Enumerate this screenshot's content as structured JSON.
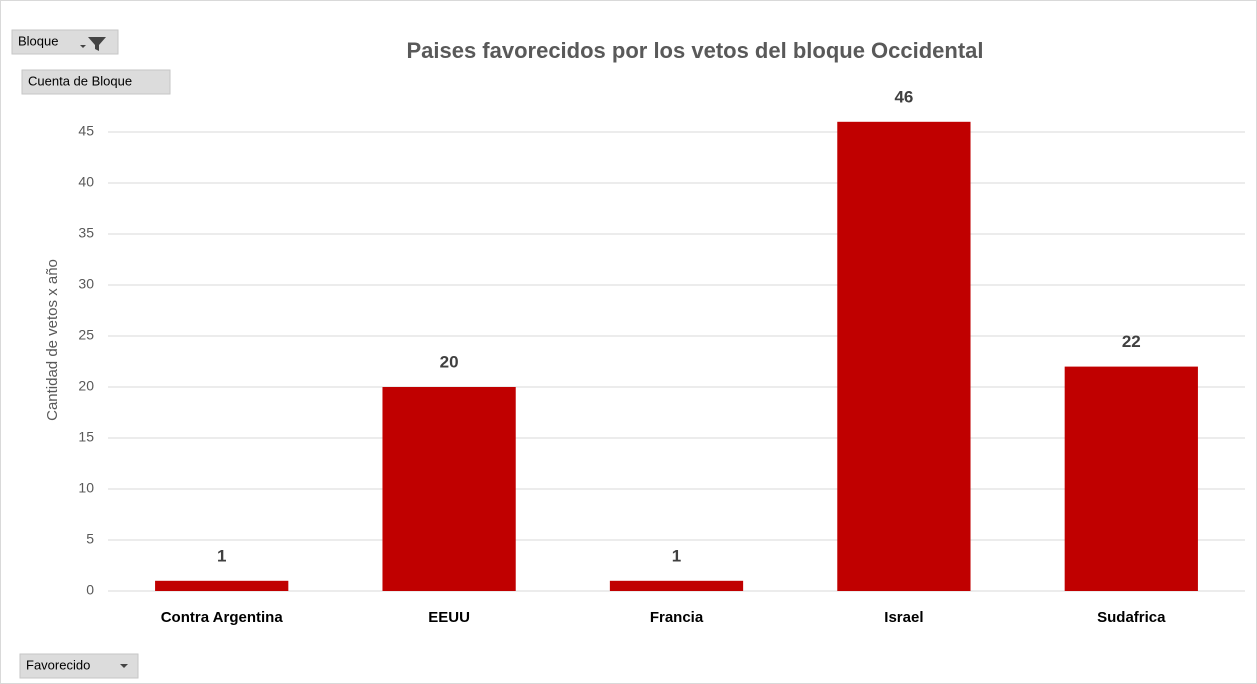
{
  "pivot_fields": {
    "filter": "Bloque",
    "values": "Cuenta de Bloque",
    "axis": "Favorecido"
  },
  "chart_data": {
    "type": "bar",
    "title": "Paises favorecidos por los vetos del bloque Occidental",
    "y_label": "Cantidad de vetos x año",
    "categories": [
      "Contra Argentina",
      "EEUU",
      "Francia",
      "Israel",
      "Sudafrica"
    ],
    "values": [
      1,
      20,
      1,
      46,
      22
    ],
    "color": "#c00000",
    "ylim": [
      0,
      50
    ],
    "yticks": [
      0,
      5,
      10,
      15,
      20,
      25,
      30,
      35,
      40,
      45
    ],
    "grid": true
  }
}
